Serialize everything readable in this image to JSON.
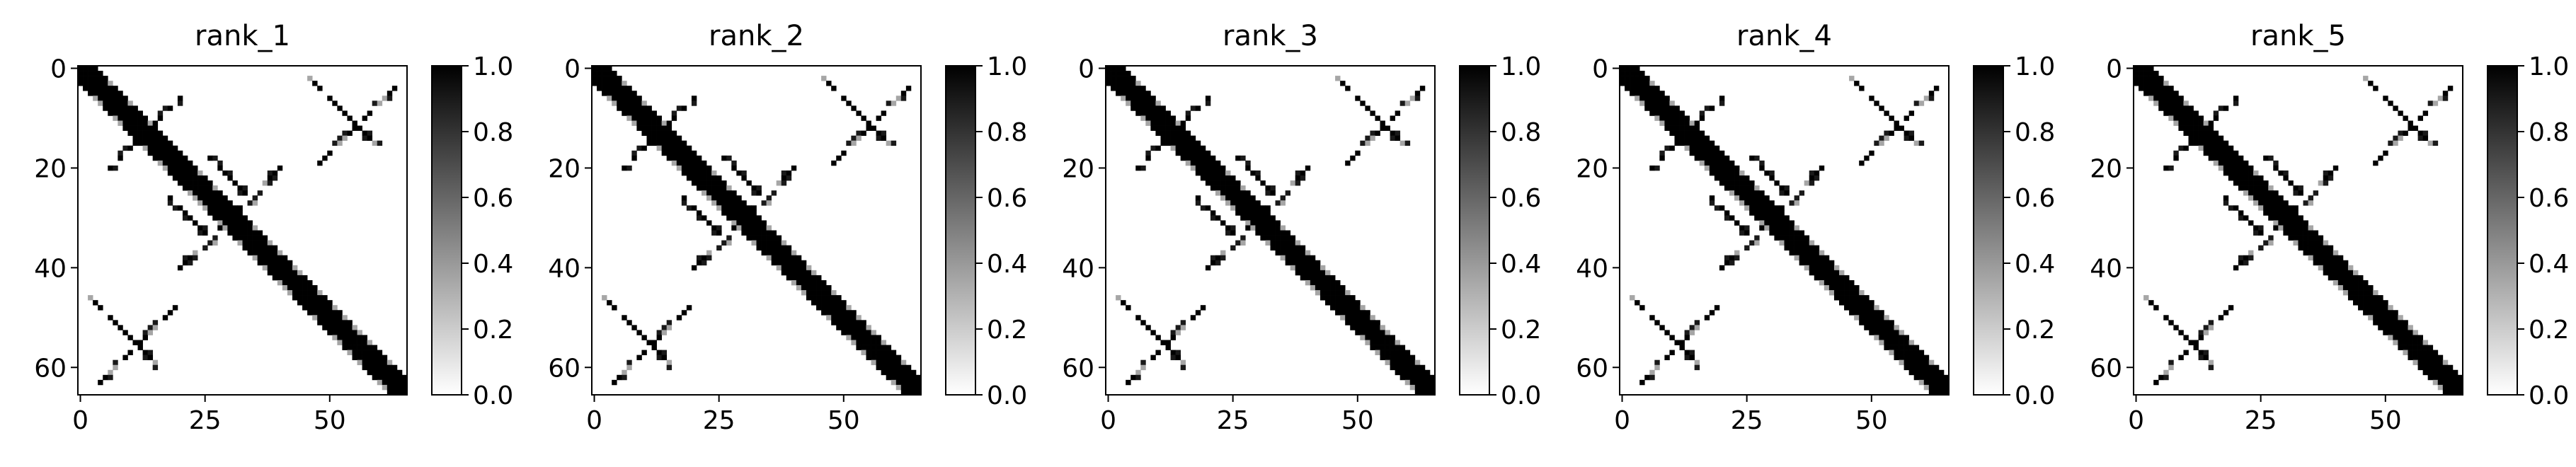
{
  "chart_data": [
    {
      "type": "heatmap",
      "title": "rank_1",
      "size": 66,
      "xticks": [
        0,
        25,
        50
      ],
      "yticks": [
        0,
        20,
        40,
        60
      ],
      "colorbar": {
        "range": [
          0.0,
          1.0
        ],
        "ticks": [
          "0.0",
          "0.2",
          "0.4",
          "0.6",
          "0.8",
          "1.0"
        ],
        "colormap": "Greys"
      }
    },
    {
      "type": "heatmap",
      "title": "rank_2",
      "size": 66,
      "xticks": [
        0,
        25,
        50
      ],
      "yticks": [
        0,
        20,
        40,
        60
      ],
      "colorbar": {
        "range": [
          0.0,
          1.0
        ],
        "ticks": [
          "0.0",
          "0.2",
          "0.4",
          "0.6",
          "0.8",
          "1.0"
        ],
        "colormap": "Greys"
      }
    },
    {
      "type": "heatmap",
      "title": "rank_3",
      "size": 66,
      "xticks": [
        0,
        25,
        50
      ],
      "yticks": [
        0,
        20,
        40,
        60
      ],
      "colorbar": {
        "range": [
          0.0,
          1.0
        ],
        "ticks": [
          "0.0",
          "0.2",
          "0.4",
          "0.6",
          "0.8",
          "1.0"
        ],
        "colormap": "Greys"
      }
    },
    {
      "type": "heatmap",
      "title": "rank_4",
      "size": 66,
      "xticks": [
        0,
        25,
        50
      ],
      "yticks": [
        0,
        20,
        40,
        60
      ],
      "colorbar": {
        "range": [
          0.0,
          1.0
        ],
        "ticks": [
          "0.0",
          "0.2",
          "0.4",
          "0.6",
          "0.8",
          "1.0"
        ],
        "colormap": "Greys"
      }
    },
    {
      "type": "heatmap",
      "title": "rank_5",
      "size": 66,
      "xticks": [
        0,
        25,
        50
      ],
      "yticks": [
        0,
        20,
        40,
        60
      ],
      "colorbar": {
        "range": [
          0.0,
          1.0
        ],
        "ticks": [
          "0.0",
          "0.2",
          "0.4",
          "0.6",
          "0.8",
          "1.0"
        ],
        "colormap": "Greys"
      }
    }
  ]
}
